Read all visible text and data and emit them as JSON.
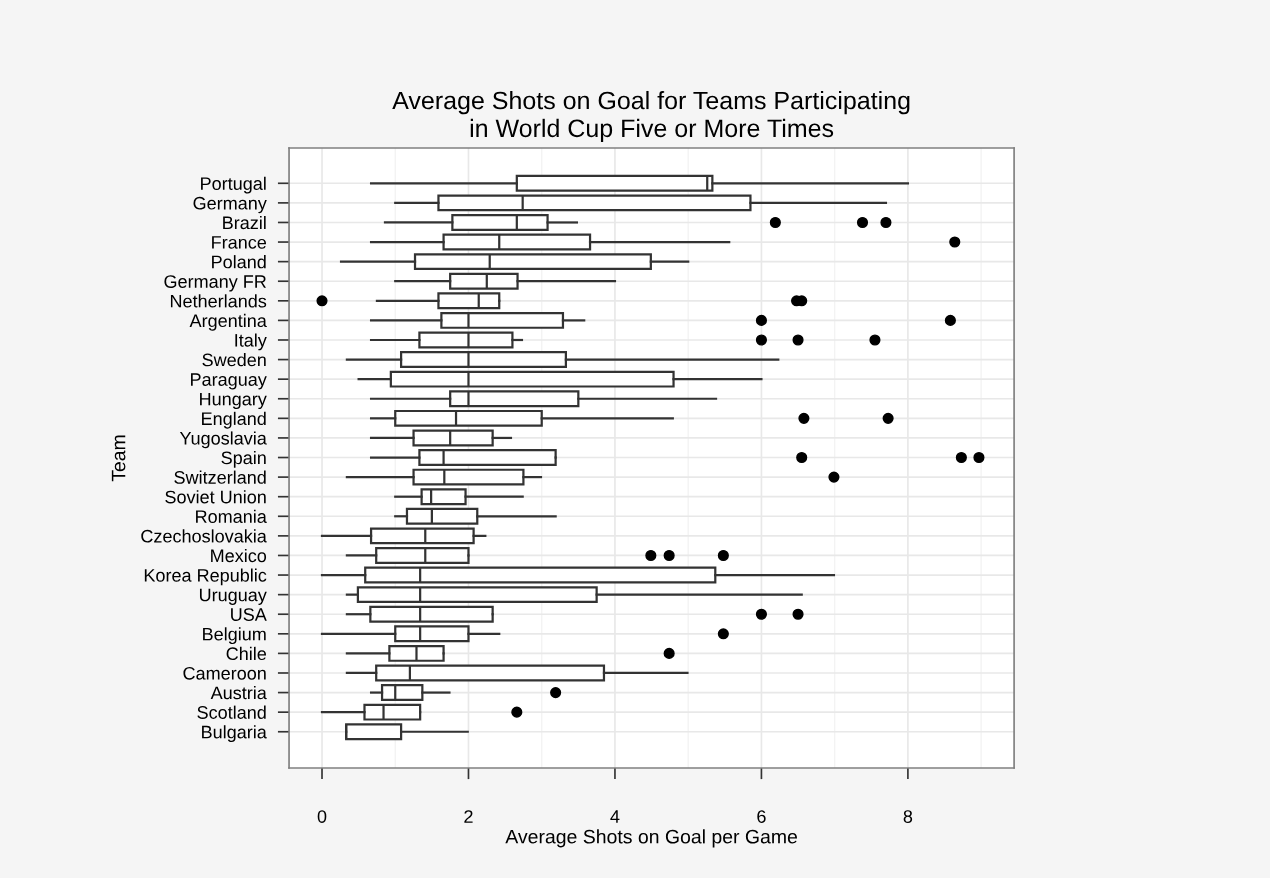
{
  "chart_data": {
    "type": "box",
    "orientation": "horizontal",
    "title": "Average Shots on Goal for Teams Participating\nin World Cup Five or More Times",
    "xlabel": "Average Shots on Goal per Game",
    "ylabel": "Team",
    "categories": [
      "Portugal",
      "Germany",
      "Brazil",
      "France",
      "Poland",
      "Germany FR",
      "Netherlands",
      "Argentina",
      "Italy",
      "Sweden",
      "Paraguay",
      "Hungary",
      "England",
      "Yugoslavia",
      "Spain",
      "Switzerland",
      "Soviet Union",
      "Romania",
      "Czechoslovakia",
      "Mexico",
      "Korea Republic",
      "Uruguay",
      "USA",
      "Belgium",
      "Chile",
      "Cameroon",
      "Austria",
      "Scotland",
      "Bulgaria"
    ],
    "boxes": [
      {
        "low": 0.67,
        "q1": 2.66,
        "median": 5.26,
        "q3": 5.33,
        "high": 8.0
      },
      {
        "low": 1.0,
        "q1": 1.59,
        "median": 2.74,
        "q3": 5.85,
        "high": 7.7
      },
      {
        "low": 0.86,
        "q1": 1.78,
        "median": 2.66,
        "q3": 3.08,
        "high": 3.48,
        "outliers": [
          6.19,
          7.38,
          7.7
        ]
      },
      {
        "low": 0.67,
        "q1": 1.66,
        "median": 2.42,
        "q3": 3.66,
        "high": 5.56,
        "outliers": [
          8.64
        ]
      },
      {
        "low": 0.26,
        "q1": 1.27,
        "median": 2.29,
        "q3": 4.49,
        "high": 5.0
      },
      {
        "low": 1.0,
        "q1": 1.75,
        "median": 2.25,
        "q3": 2.67,
        "high": 4.0
      },
      {
        "low": 0.75,
        "q1": 1.59,
        "median": 2.14,
        "q3": 2.42,
        "high": 2.42,
        "outliers": [
          0.0,
          6.48,
          6.55
        ]
      },
      {
        "low": 0.67,
        "q1": 1.63,
        "median": 2.0,
        "q3": 3.29,
        "high": 3.58,
        "outliers": [
          6.0,
          8.58
        ]
      },
      {
        "low": 0.67,
        "q1": 1.33,
        "median": 2.0,
        "q3": 2.6,
        "high": 2.73,
        "outliers": [
          6.0,
          6.5,
          7.55
        ]
      },
      {
        "low": 0.34,
        "q1": 1.08,
        "median": 2.0,
        "q3": 3.33,
        "high": 6.23
      },
      {
        "low": 0.5,
        "q1": 0.94,
        "median": 2.0,
        "q3": 4.8,
        "high": 6.0
      },
      {
        "low": 0.67,
        "q1": 1.75,
        "median": 2.0,
        "q3": 3.5,
        "high": 5.38
      },
      {
        "low": 0.67,
        "q1": 1.0,
        "median": 1.83,
        "q3": 3.0,
        "high": 4.79,
        "outliers": [
          6.58,
          7.73
        ]
      },
      {
        "low": 0.67,
        "q1": 1.25,
        "median": 1.75,
        "q3": 2.33,
        "high": 2.58
      },
      {
        "low": 0.67,
        "q1": 1.33,
        "median": 1.66,
        "q3": 3.19,
        "high": 3.19,
        "outliers": [
          6.55,
          8.73,
          8.97
        ]
      },
      {
        "low": 0.34,
        "q1": 1.25,
        "median": 1.67,
        "q3": 2.75,
        "high": 2.99,
        "outliers": [
          6.99
        ]
      },
      {
        "low": 1.0,
        "q1": 1.36,
        "median": 1.49,
        "q3": 1.96,
        "high": 2.74
      },
      {
        "low": 1.0,
        "q1": 1.16,
        "median": 1.5,
        "q3": 2.12,
        "high": 3.19
      },
      {
        "low": 0.0,
        "q1": 0.67,
        "median": 1.41,
        "q3": 2.07,
        "high": 2.23
      },
      {
        "low": 0.34,
        "q1": 0.74,
        "median": 1.41,
        "q3": 2.0,
        "high": 2.0,
        "outliers": [
          4.49,
          4.74,
          5.48
        ]
      },
      {
        "low": 0.0,
        "q1": 0.59,
        "median": 1.34,
        "q3": 5.37,
        "high": 6.99
      },
      {
        "low": 0.34,
        "q1": 0.49,
        "median": 1.34,
        "q3": 3.75,
        "high": 6.55
      },
      {
        "low": 0.34,
        "q1": 0.66,
        "median": 1.34,
        "q3": 2.33,
        "high": 2.33,
        "outliers": [
          6.0,
          6.5
        ]
      },
      {
        "low": 0.0,
        "q1": 1.0,
        "median": 1.34,
        "q3": 2.0,
        "high": 2.42,
        "outliers": [
          5.48
        ]
      },
      {
        "low": 0.34,
        "q1": 0.92,
        "median": 1.29,
        "q3": 1.66,
        "high": 1.66,
        "outliers": [
          4.74
        ]
      },
      {
        "low": 0.34,
        "q1": 0.74,
        "median": 1.2,
        "q3": 3.85,
        "high": 4.99
      },
      {
        "low": 0.67,
        "q1": 0.82,
        "median": 1.0,
        "q3": 1.37,
        "high": 1.74,
        "outliers": [
          3.19
        ]
      },
      {
        "low": 0.0,
        "q1": 0.58,
        "median": 0.84,
        "q3": 1.34,
        "high": 1.34,
        "outliers": [
          2.66
        ]
      },
      {
        "low": 0.33,
        "q1": 0.33,
        "median": 0.33,
        "q3": 1.08,
        "high": 1.99
      }
    ],
    "xlim": [
      -0.45,
      9.45
    ],
    "xticks": [
      0,
      2,
      4,
      6,
      8
    ],
    "grid": true
  }
}
